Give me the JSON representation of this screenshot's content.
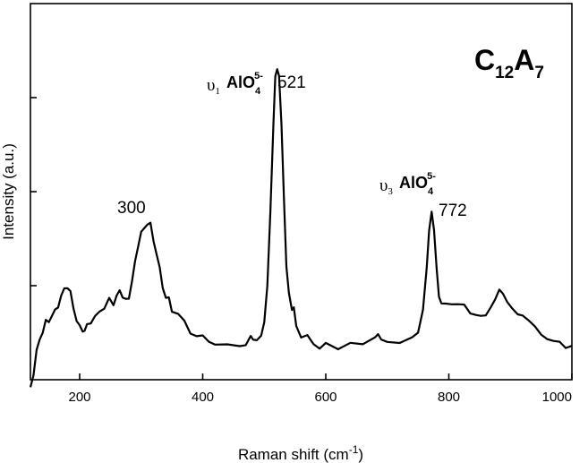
{
  "chart_data": {
    "type": "line",
    "xlabel": "Raman shift (cm",
    "xlabel_sup": "-1",
    "xlabel_close": ")",
    "ylabel": "Intensity (a.u.)",
    "xlim": [
      120,
      1000
    ],
    "ylim": [
      0,
      100
    ],
    "x_ticks": [
      200,
      400,
      600,
      800,
      1000
    ],
    "y_ticks": [
      25,
      50,
      75
    ],
    "y_tick_labels_shown": false,
    "grid": false,
    "sample": {
      "main": "C",
      "sub1": "12",
      "mid": "A",
      "sub2": "7"
    },
    "annotations": [
      {
        "id": "p300",
        "text": "300",
        "x": 300
      },
      {
        "id": "p521",
        "text": "521",
        "x": 521,
        "mode": "υ",
        "mode_sub": "1",
        "ion": "AlO",
        "ion_sub": "4",
        "ion_sup": "5-"
      },
      {
        "id": "p772",
        "text": "772",
        "x": 772,
        "mode": "υ",
        "mode_sub": "3",
        "ion": "AlO",
        "ion_sub": "4",
        "ion_sup": "5-"
      }
    ],
    "series": [
      {
        "points": [
          [
            120,
            -2
          ],
          [
            125,
            2
          ],
          [
            130,
            7
          ],
          [
            135,
            11
          ],
          [
            140,
            13
          ],
          [
            145,
            15
          ],
          [
            150,
            16
          ],
          [
            155,
            17
          ],
          [
            160,
            18
          ],
          [
            165,
            20
          ],
          [
            170,
            22
          ],
          [
            175,
            24
          ],
          [
            180,
            25
          ],
          [
            185,
            23
          ],
          [
            190,
            19
          ],
          [
            195,
            16
          ],
          [
            200,
            14
          ],
          [
            205,
            13
          ],
          [
            208,
            12
          ],
          [
            212,
            14
          ],
          [
            218,
            15
          ],
          [
            225,
            17
          ],
          [
            232,
            19
          ],
          [
            240,
            19
          ],
          [
            248,
            21
          ],
          [
            255,
            20
          ],
          [
            260,
            22
          ],
          [
            265,
            24
          ],
          [
            270,
            22
          ],
          [
            275,
            21
          ],
          [
            280,
            22
          ],
          [
            285,
            26
          ],
          [
            290,
            31
          ],
          [
            295,
            36
          ],
          [
            300,
            39
          ],
          [
            305,
            40
          ],
          [
            310,
            42
          ],
          [
            315,
            41
          ],
          [
            320,
            37
          ],
          [
            325,
            34
          ],
          [
            330,
            29
          ],
          [
            335,
            25
          ],
          [
            340,
            22
          ],
          [
            345,
            21
          ],
          [
            350,
            19
          ],
          [
            360,
            17
          ],
          [
            370,
            15
          ],
          [
            380,
            13
          ],
          [
            390,
            12
          ],
          [
            400,
            11
          ],
          [
            410,
            10
          ],
          [
            420,
            10
          ],
          [
            440,
            9
          ],
          [
            460,
            9
          ],
          [
            470,
            9
          ],
          [
            478,
            11
          ],
          [
            482,
            10
          ],
          [
            488,
            10
          ],
          [
            495,
            12
          ],
          [
            500,
            15
          ],
          [
            505,
            25
          ],
          [
            510,
            45
          ],
          [
            515,
            68
          ],
          [
            518,
            80
          ],
          [
            521,
            83
          ],
          [
            524,
            81
          ],
          [
            528,
            68
          ],
          [
            532,
            48
          ],
          [
            536,
            30
          ],
          [
            540,
            23
          ],
          [
            545,
            18
          ],
          [
            548,
            19
          ],
          [
            552,
            14
          ],
          [
            560,
            11
          ],
          [
            570,
            11
          ],
          [
            580,
            10
          ],
          [
            590,
            9
          ],
          [
            600,
            9
          ],
          [
            620,
            9
          ],
          [
            640,
            9
          ],
          [
            660,
            10
          ],
          [
            670,
            10
          ],
          [
            680,
            11
          ],
          [
            685,
            12
          ],
          [
            690,
            11
          ],
          [
            700,
            10
          ],
          [
            720,
            10
          ],
          [
            740,
            11
          ],
          [
            750,
            13
          ],
          [
            758,
            18
          ],
          [
            764,
            30
          ],
          [
            768,
            40
          ],
          [
            772,
            45
          ],
          [
            776,
            40
          ],
          [
            780,
            30
          ],
          [
            784,
            22
          ],
          [
            788,
            20
          ],
          [
            795,
            20
          ],
          [
            805,
            21
          ],
          [
            815,
            20
          ],
          [
            825,
            19
          ],
          [
            835,
            18
          ],
          [
            845,
            18
          ],
          [
            852,
            17
          ],
          [
            860,
            18
          ],
          [
            868,
            20
          ],
          [
            875,
            22
          ],
          [
            882,
            24
          ],
          [
            888,
            22
          ],
          [
            895,
            20
          ],
          [
            903,
            18
          ],
          [
            912,
            18
          ],
          [
            920,
            17
          ],
          [
            930,
            16
          ],
          [
            940,
            14
          ],
          [
            950,
            12
          ],
          [
            960,
            11
          ],
          [
            970,
            10
          ],
          [
            980,
            10
          ],
          [
            990,
            9
          ],
          [
            1000,
            9
          ]
        ]
      }
    ]
  }
}
